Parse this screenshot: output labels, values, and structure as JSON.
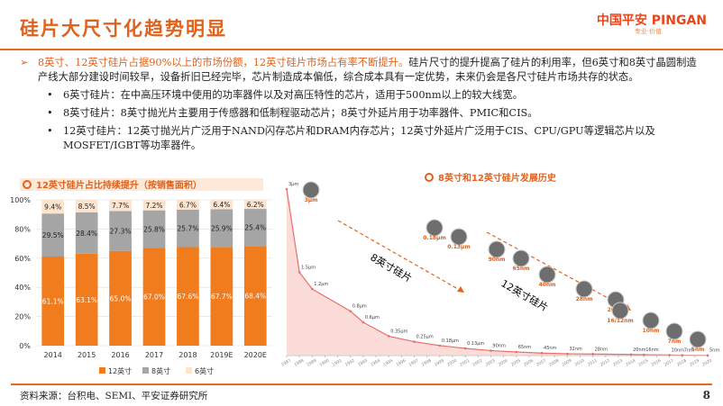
{
  "header": {
    "title": "硅片大尺寸化趋势明显",
    "logo": "中国平安 PINGAN",
    "slogan": "专业·价值"
  },
  "bullets": {
    "main_highlight": "8英寸、12英寸硅片占据90%以上的市场份额，12英寸硅片市场占有率不断提升。",
    "main_text": "硅片尺寸的提升提高了硅片的利用率，但6英寸和8英寸晶圆制造产线大部分建设时间较早，设备折旧已经完毕，芯片制造成本偏低，综合成本具有一定优势，未来仍会是各尺寸硅片市场共存的状态。",
    "sub": [
      "6英寸硅片：在中高压环境中使用的功率器件以及对高压特性的芯片，适用于500nm以上的较大线宽。",
      "8英寸硅片：8英寸抛光片主要用于传感器和低制程驱动芯片；8英寸外延片用于功率器件、PMIC和CIS。",
      "12英寸硅片：12英寸抛光片广泛用于NAND闪存芯片和DRAM内存芯片；12英寸外延片广泛用于CIS、CPU/GPU等逻辑芯片以及MOSFET/IGBT等功率器件。"
    ]
  },
  "chart_data": [
    {
      "type": "bar",
      "stacked": true,
      "title": "12英寸硅片占比持续提升（按销售面积）",
      "categories": [
        "2014",
        "2015",
        "2016",
        "2017",
        "2018",
        "2019E",
        "2020E"
      ],
      "series": [
        {
          "name": "12英寸",
          "color": "#f07c1e",
          "values": [
            61.1,
            63.1,
            65.0,
            67.0,
            67.6,
            67.7,
            68.4
          ],
          "value_labels": [
            "61.1%",
            "63.1%",
            "65.0%",
            "67.0%",
            "67.6%",
            "67.7%",
            "68.4%"
          ]
        },
        {
          "name": "8英寸",
          "color": "#a5a5a5",
          "values": [
            29.5,
            28.4,
            27.3,
            25.8,
            25.7,
            25.9,
            25.4
          ],
          "value_labels": [
            "29.5%",
            "28.4%",
            "27.3%",
            "25.8%",
            "25.7%",
            "25.9%",
            "25.4%"
          ]
        },
        {
          "name": "6英寸",
          "color": "#fce4cf",
          "values": [
            9.4,
            8.5,
            7.7,
            7.2,
            6.7,
            6.4,
            6.2
          ],
          "value_labels": [
            "9.4%",
            "8.5%",
            "7.7%",
            "7.2%",
            "6.7%",
            "6.4%",
            "6.2%"
          ]
        }
      ],
      "ylim": [
        0,
        100
      ],
      "yticks": [
        {
          "value": 0,
          "label": "0%"
        },
        {
          "value": 20,
          "label": "20%"
        },
        {
          "value": 40,
          "label": "40%"
        },
        {
          "value": 60,
          "label": "60%"
        },
        {
          "value": 80,
          "label": "80%"
        },
        {
          "value": 100,
          "label": "100%"
        }
      ],
      "grid": true
    },
    {
      "type": "line",
      "title": "8英寸和12英寸硅片发展历史",
      "color": "#e8706b",
      "area_color": "#fbdcd9",
      "x": [
        1987,
        1988,
        1989,
        1992,
        1993,
        1995,
        1997,
        1999,
        2001,
        2003,
        2005,
        2007,
        2009,
        2011,
        2014,
        2015,
        2017,
        2018,
        2020
      ],
      "values": [
        3,
        1.5,
        1.2,
        0.8,
        0.6,
        0.35,
        0.25,
        0.18,
        0.13,
        0.09,
        0.065,
        0.045,
        0.032,
        0.028,
        0.02,
        0.016,
        0.01,
        0.007,
        0.005
      ],
      "value_labels": [
        "3μm",
        "1.5μm",
        "1.2μm",
        "0.8μm",
        "0.6μm",
        "0.35μm",
        "0.25μm",
        "0.18μm",
        "0.13μm",
        "90nm",
        "65nm",
        "45nm",
        "32nm",
        "28nm",
        "20nm",
        "16nm",
        "10nm",
        "7nm",
        "5nm"
      ],
      "xlim": [
        1987,
        2020
      ],
      "xticks": [
        1987,
        1988,
        1989,
        1990,
        1991,
        1992,
        1993,
        1994,
        1995,
        1996,
        1997,
        1998,
        1999,
        2000,
        2001,
        2002,
        2003,
        2004,
        2005,
        2006,
        2007,
        2008,
        2009,
        2010,
        2011,
        2012,
        2013,
        2014,
        2015,
        2016,
        2017,
        2018,
        2019,
        2020
      ],
      "ylim": [
        0,
        3
      ],
      "annotations": [
        "8英寸硅片",
        "12英寸硅片"
      ],
      "callouts": [
        "3μm",
        "0.18μm",
        "0.13μm",
        "90nm",
        "65nm",
        "40nm",
        "28nm",
        "20nm",
        "16/12nm",
        "10nm",
        "7nm",
        "5nm"
      ]
    }
  ],
  "footer": {
    "source": "资料来源：台积电、SEMI、平安证券研究所",
    "page": "8"
  }
}
